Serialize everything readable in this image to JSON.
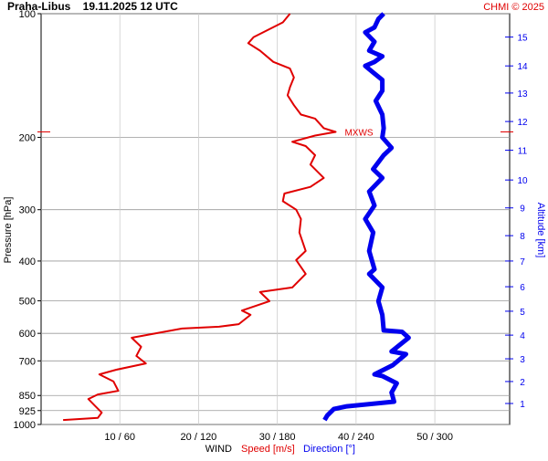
{
  "chart_data": {
    "type": "profile",
    "title": "Praha-Libus    19.11.2025 12 UTC",
    "credit": "CHMI © 2025",
    "ylabel": "Pressure [hPa]",
    "y2label": "Altitude [km]",
    "xlabel": "WIND",
    "y_log": true,
    "grid": true,
    "ylim": [
      1000,
      100
    ],
    "yticks": [
      100,
      200,
      300,
      400,
      500,
      600,
      700,
      850,
      925,
      1000
    ],
    "y2ticks": [
      1,
      2,
      3,
      4,
      5,
      6,
      7,
      8,
      9,
      10,
      11,
      12,
      13,
      14,
      15
    ],
    "y2_pressure": [
      889,
      786,
      692,
      606,
      530,
      462,
      400,
      347,
      297,
      254,
      215,
      183,
      156,
      134,
      114
    ],
    "xlim": [
      0,
      59.5
    ],
    "x2lim": [
      0,
      357
    ],
    "xticks": [
      {
        "value": 10,
        "label": "10 / 60"
      },
      {
        "value": 20,
        "label": "20 / 120"
      },
      {
        "value": 30,
        "label": "30 / 180"
      },
      {
        "value": 40,
        "label": "40 / 240"
      },
      {
        "value": 50,
        "label": "50 / 300"
      }
    ],
    "annotation": {
      "text": "MXWS",
      "pressure": 194,
      "value": 37.4
    },
    "series": [
      {
        "name": "Speed [m/s]",
        "color": "#e00000",
        "axis": "x",
        "y": [
          100,
          105,
          114,
          118,
          123,
          131,
          136,
          143,
          151,
          158,
          167,
          176,
          180,
          190,
          194,
          198,
          205,
          210,
          221,
          233,
          251,
          264,
          274,
          286,
          300,
          316,
          341,
          378,
          398,
          430,
          464,
          476,
          501,
          528,
          541,
          570,
          578,
          584,
          615,
          647,
          681,
          710,
          736,
          755,
          786,
          828,
          845,
          867,
          903,
          935,
          964,
          975
        ],
        "values": [
          31.6,
          30.7,
          27.0,
          26.3,
          27.8,
          29.5,
          31.6,
          32.1,
          31.6,
          31.3,
          32.1,
          33.0,
          34.8,
          35.9,
          37.4,
          34.8,
          31.9,
          33.6,
          34.8,
          34.2,
          35.9,
          34.2,
          30.9,
          30.7,
          32.4,
          33.0,
          32.8,
          33.6,
          32.4,
          33.6,
          31.9,
          27.8,
          29.0,
          25.5,
          26.6,
          25.1,
          22.6,
          17.9,
          11.5,
          12.7,
          12.1,
          13.3,
          9.5,
          7.4,
          9.2,
          9.8,
          7.2,
          6.0,
          6.9,
          7.7,
          7.2,
          2.8
        ]
      },
      {
        "name": "Direction [°]",
        "color": "#0000ee",
        "axis": "x2",
        "y": [
          100,
          103,
          108,
          111,
          117,
          123,
          127,
          131,
          134,
          139,
          145,
          154,
          163,
          176,
          190,
          200,
          212,
          221,
          239,
          251,
          271,
          293,
          316,
          341,
          378,
          419,
          430,
          464,
          501,
          541,
          590,
          595,
          615,
          664,
          674,
          717,
          755,
          762,
          794,
          836,
          880,
          903,
          917,
          951,
          975
        ],
        "values": [
          261,
          257,
          254,
          247,
          254,
          250,
          260,
          254,
          247,
          253,
          260,
          260,
          255,
          260,
          261,
          260,
          267,
          261,
          253,
          260,
          250,
          254,
          247,
          253,
          250,
          254,
          250,
          260,
          257,
          260,
          261,
          275,
          280,
          267,
          278,
          268,
          254,
          260,
          271,
          267,
          269,
          233,
          223,
          218,
          216
        ]
      }
    ]
  }
}
